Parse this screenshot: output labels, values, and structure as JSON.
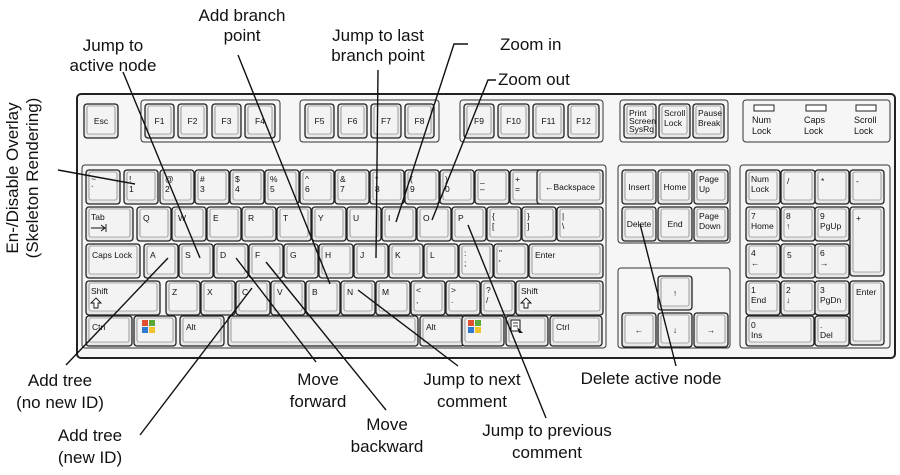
{
  "annotations": {
    "overlay": [
      "En-/Disable Overlay",
      "(Skeleton Rendering)"
    ],
    "jump_active": [
      "Jump to",
      "active node"
    ],
    "add_branch": [
      "Add branch",
      "point"
    ],
    "jump_last": [
      "Jump to last",
      "branch point"
    ],
    "zoom_in": "Zoom in",
    "zoom_out": "Zoom out",
    "add_tree_no": [
      "Add tree",
      "(no new ID)"
    ],
    "add_tree_new": [
      "Add tree",
      "(new ID)"
    ],
    "move_fwd": [
      "Move",
      "forward"
    ],
    "move_back": [
      "Move",
      "backward"
    ],
    "next_comment": [
      "Jump to next",
      "comment"
    ],
    "prev_comment": [
      "Jump to previous",
      "comment"
    ],
    "delete_node": "Delete active node"
  },
  "keys": {
    "esc": "Esc",
    "f1": "F1",
    "f2": "F2",
    "f3": "F3",
    "f4": "F4",
    "f5": "F5",
    "f6": "F6",
    "f7": "F7",
    "f8": "F8",
    "f9": "F9",
    "f10": "F10",
    "f11": "F11",
    "f12": "F12",
    "print": [
      "Print",
      "Screen",
      "SysRq"
    ],
    "scroll": [
      "Scroll",
      "Lock"
    ],
    "pause": [
      "Pause",
      "Break"
    ],
    "led_num": [
      "Num",
      "Lock"
    ],
    "led_caps": [
      "Caps",
      "Lock"
    ],
    "led_scroll": [
      "Scroll",
      "Lock"
    ],
    "tilde": [
      "~",
      "`"
    ],
    "n1": [
      "!",
      "1"
    ],
    "n2": [
      "@",
      "2"
    ],
    "n3": [
      "#",
      "3"
    ],
    "n4": [
      "$",
      "4"
    ],
    "n5": [
      "%",
      "5"
    ],
    "n6": [
      "^",
      "6"
    ],
    "n7": [
      "&",
      "7"
    ],
    "n8": [
      "*",
      "8"
    ],
    "n9": [
      "(",
      "9"
    ],
    "n0": [
      ")",
      "0"
    ],
    "minus": [
      "_",
      "–"
    ],
    "plus": [
      "+",
      "="
    ],
    "backspace": "←Backspace",
    "tab": "Tab",
    "q": "Q",
    "w": "W",
    "e": "E",
    "r": "R",
    "t": "T",
    "y": "Y",
    "u": "U",
    "i": "I",
    "o": "O",
    "p": "P",
    "lbrace": [
      "{",
      "["
    ],
    "rbrace": [
      "}",
      "]"
    ],
    "pipe": [
      "|",
      "\\"
    ],
    "caps": "Caps Lock",
    "a": "A",
    "s": "S",
    "d": "D",
    "f": "F",
    "g": "G",
    "h": "H",
    "j": "J",
    "k": "K",
    "l": "L",
    "semi": [
      ":",
      ";"
    ],
    "quote": [
      "\"",
      "'"
    ],
    "enter": "Enter",
    "shift": "Shift",
    "z": "Z",
    "x": "X",
    "c": "C",
    "v": "V",
    "b": "B",
    "n": "N",
    "m": "M",
    "comma": [
      "<",
      ","
    ],
    "period": [
      ">",
      "."
    ],
    "slash": [
      "?",
      "/"
    ],
    "ctrl": "Ctrl",
    "alt": "Alt",
    "insert": "Insert",
    "home": "Home",
    "pgup": [
      "Page",
      "Up"
    ],
    "delete": "Delete",
    "end": "End",
    "pgdn": [
      "Page",
      "Down"
    ],
    "numlock": [
      "Num",
      "Lock"
    ],
    "kp_div": "/",
    "kp_mul": "*",
    "kp_minus": "-",
    "kp7": [
      "7",
      "Home"
    ],
    "kp8": [
      "8",
      "↑"
    ],
    "kp9": [
      "9",
      "PgUp"
    ],
    "kp_plus": "+",
    "kp4": [
      "4",
      "←"
    ],
    "kp5": "5",
    "kp6": [
      "6",
      "→"
    ],
    "kp1": [
      "1",
      "End"
    ],
    "kp2": [
      "2",
      "↓"
    ],
    "kp3": [
      "3",
      "PgDn"
    ],
    "kp_enter": "Enter",
    "kp0": [
      "0",
      "Ins"
    ],
    "kp_dot": [
      ".",
      "Del"
    ],
    "arrow_up": "↑",
    "arrow_left": "←",
    "arrow_down": "↓",
    "arrow_right": "→"
  }
}
